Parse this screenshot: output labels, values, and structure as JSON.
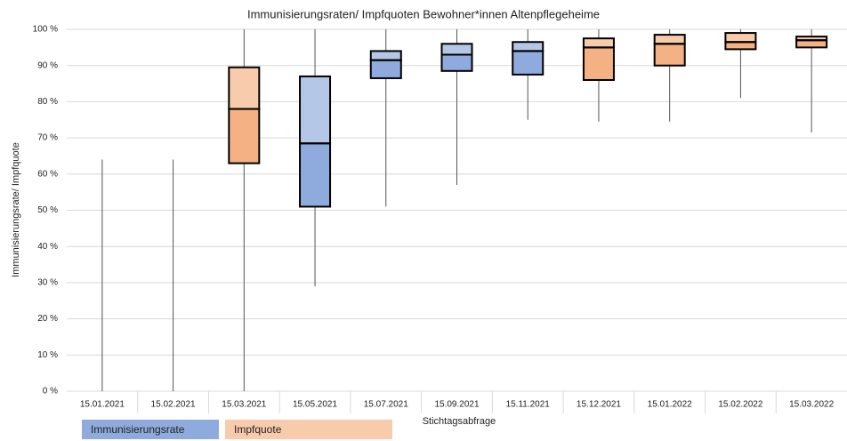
{
  "chart_data": {
    "type": "box",
    "title": "Immunisierungsraten/ Impfquoten Bewohner*innen Altenpflegeheime",
    "x_label": "Stichtagsabfrage",
    "y_label": "Immunisierungsrate/ Impfquote",
    "categories": [
      "15.01.2021",
      "15.02.2021",
      "15.03.2021",
      "15.05.2021",
      "15.07.2021",
      "15.09.2021",
      "15.11.2021",
      "15.12.2021",
      "15.01.2022",
      "15.02.2022",
      "15.03.2022"
    ],
    "series": [
      {
        "name": "Immunisierungsrate",
        "color": "#8faadc",
        "upper_color": "#b4c7e7",
        "values": [
          {
            "min": 0,
            "max": 64
          },
          {
            "min": 0,
            "max": 64
          },
          null,
          {
            "min": 29,
            "q1": 51,
            "median": 68.5,
            "q3": 87,
            "max": 100
          },
          {
            "min": 51,
            "q1": 86.5,
            "median": 91.5,
            "q3": 94,
            "max": 100
          },
          {
            "min": 57,
            "q1": 88.5,
            "median": 93,
            "q3": 96,
            "max": 100
          },
          {
            "min": 75,
            "q1": 87.5,
            "median": 94,
            "q3": 96.5,
            "max": 100
          },
          null,
          null,
          null,
          null
        ]
      },
      {
        "name": "Impfquote",
        "color": "#f4b183",
        "upper_color": "#f8cbad",
        "values": [
          null,
          null,
          {
            "min": 0,
            "q1": 63,
            "median": 78,
            "q3": 89.5,
            "max": 100
          },
          null,
          null,
          null,
          null,
          {
            "min": 74.5,
            "q1": 86,
            "median": 95,
            "q3": 97.5,
            "max": 100
          },
          {
            "min": 74.5,
            "q1": 90,
            "median": 96,
            "q3": 98.5,
            "max": 100
          },
          {
            "min": 81,
            "q1": 94.5,
            "median": 96.5,
            "q3": 99,
            "max": 100
          },
          {
            "min": 71.5,
            "q1": 95,
            "median": 97,
            "q3": 98,
            "max": 100
          }
        ]
      }
    ],
    "ylim": [
      0,
      100
    ],
    "yticks": [
      {
        "value": 0,
        "label": "0 %"
      },
      {
        "value": 10,
        "label": "10 %"
      },
      {
        "value": 20,
        "label": "20 %"
      },
      {
        "value": 30,
        "label": "30 %"
      },
      {
        "value": 40,
        "label": "40 %"
      },
      {
        "value": 50,
        "label": "50 %"
      },
      {
        "value": 60,
        "label": "60 %"
      },
      {
        "value": 70,
        "label": "70 %"
      },
      {
        "value": 80,
        "label": "80 %"
      },
      {
        "value": 90,
        "label": "90 %"
      },
      {
        "value": 100,
        "label": "100 %"
      }
    ],
    "grid": true
  }
}
